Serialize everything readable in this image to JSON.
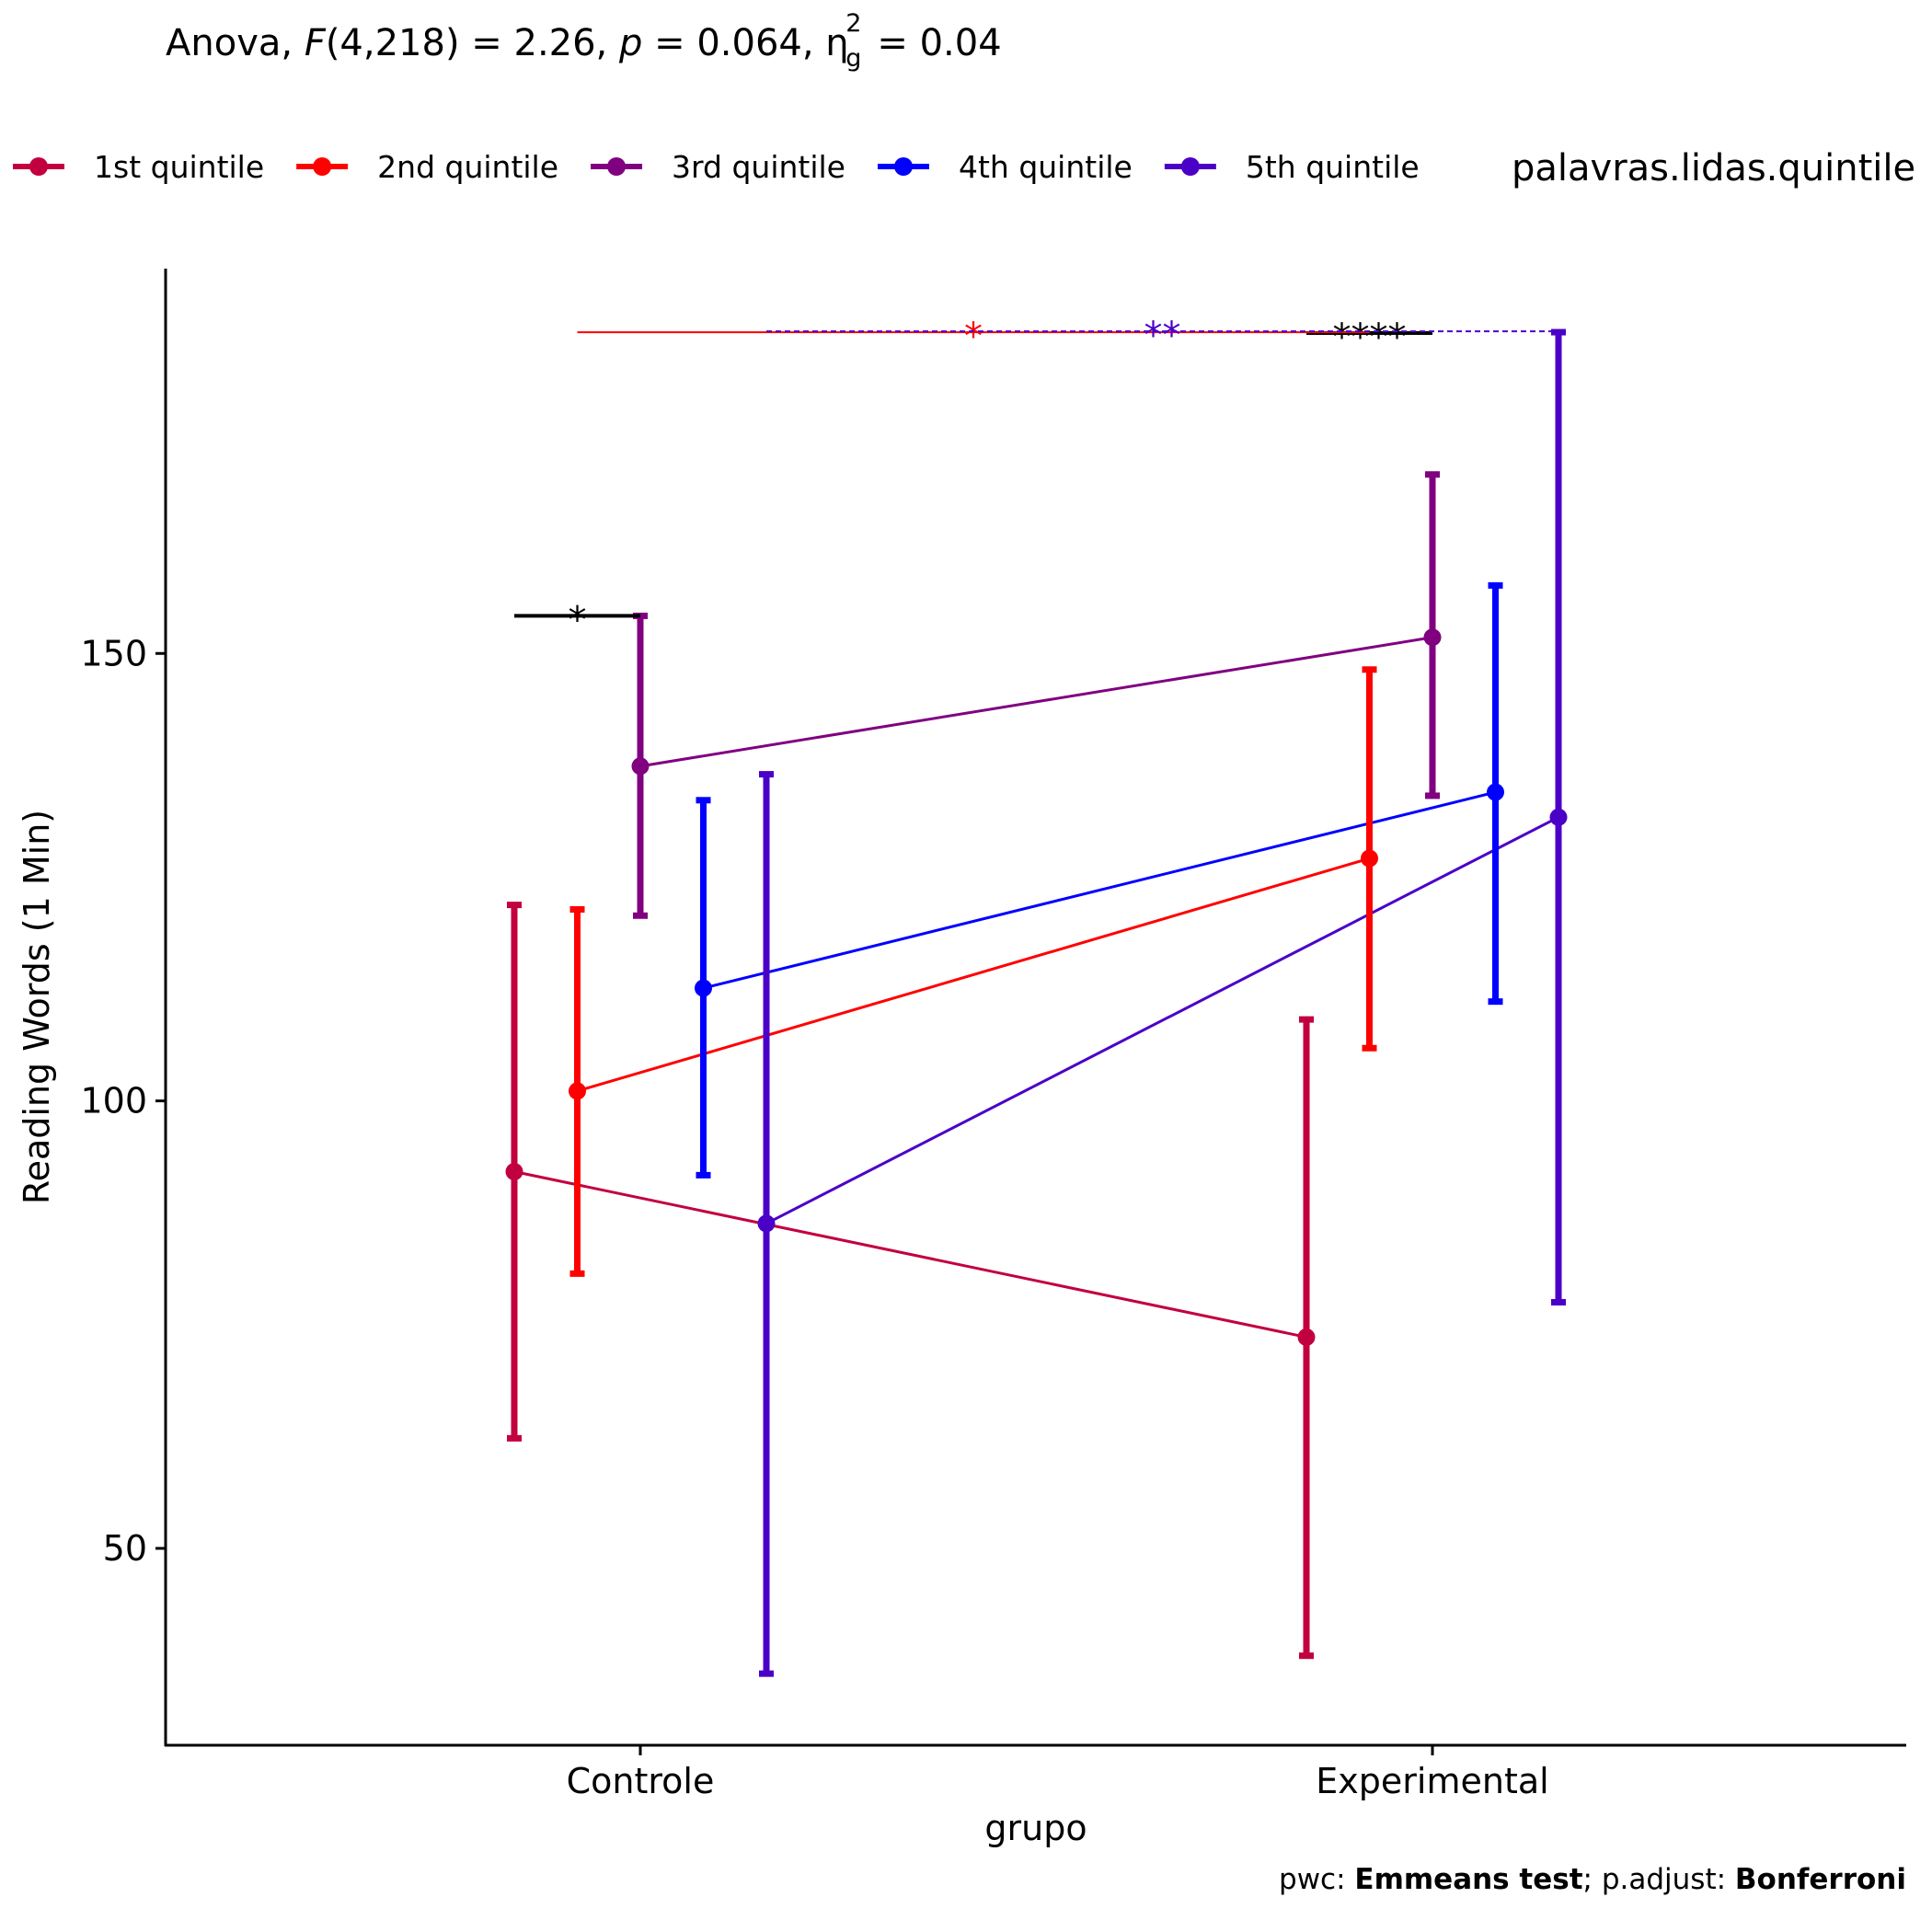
{
  "title": {
    "prefix": "Anova, ",
    "F_symbol": "F",
    "F_value": "(4,218) = 2.26, ",
    "p_symbol": "p",
    "p_value": " = 0.064, ",
    "eta_symbol": "η",
    "eta_sup": "2",
    "eta_sub": "g",
    "eta_value": " = 0.04"
  },
  "caption": {
    "pwc_label": "pwc: ",
    "pwc_value": "Emmeans test",
    "sep": "; p.adjust: ",
    "adjust_value": "Bonferroni"
  },
  "chart_data": {
    "type": "line",
    "xlabel": "grupo",
    "ylabel": "Reading Words (1 Min)",
    "categories": [
      "Controle",
      "Experimental"
    ],
    "ylim": [
      28,
      193
    ],
    "yticks": [
      50,
      100,
      150
    ],
    "grid": false,
    "legend": {
      "title": "palavras.lidas.quintile",
      "position": "top"
    },
    "series": [
      {
        "name": "1st quintile",
        "color": "#C2003F",
        "mean": [
          92.1,
          73.6
        ],
        "lower": [
          62.3,
          38.0
        ],
        "upper": [
          121.9,
          109.1
        ]
      },
      {
        "name": "2nd quintile",
        "color": "#FF0000",
        "mean": [
          101.1,
          127.1
        ],
        "lower": [
          80.7,
          105.9
        ],
        "upper": [
          121.4,
          148.2
        ]
      },
      {
        "name": "3rd quintile",
        "color": "#800080",
        "mean": [
          137.4,
          151.8
        ],
        "lower": [
          120.7,
          134.1
        ],
        "upper": [
          154.2,
          170.0
        ]
      },
      {
        "name": "4th quintile",
        "color": "#0000FF",
        "mean": [
          112.6,
          134.5
        ],
        "lower": [
          91.7,
          111.1
        ],
        "upper": [
          133.6,
          157.6
        ]
      },
      {
        "name": "5th quintile",
        "color": "#4B00C8",
        "mean": [
          86.3,
          131.7
        ],
        "lower": [
          36.0,
          77.5
        ],
        "upper": [
          136.5,
          185.9
        ]
      }
    ],
    "annotations": [
      {
        "label": "*",
        "color": "#000000",
        "y": 154.2,
        "from": {
          "cat": "Controle",
          "series": 0
        },
        "to": {
          "cat": "Controle",
          "series": 2
        },
        "dash": false
      },
      {
        "label": "****",
        "color": "#000000",
        "y": 185.8,
        "from": {
          "cat": "Experimental",
          "series": 0
        },
        "to": {
          "cat": "Experimental",
          "series": 2
        },
        "dash": false
      },
      {
        "label": "*",
        "color": "#FF0000",
        "y": 185.9,
        "from": {
          "cat": "Controle",
          "series": 1
        },
        "to": {
          "cat": "Experimental",
          "series": 1
        },
        "dash": false
      },
      {
        "label": "**",
        "color": "#4B00C8",
        "y": 186.0,
        "from": {
          "cat": "Controle",
          "series": 4
        },
        "to": {
          "cat": "Experimental",
          "series": 4
        },
        "dash": true
      }
    ]
  }
}
